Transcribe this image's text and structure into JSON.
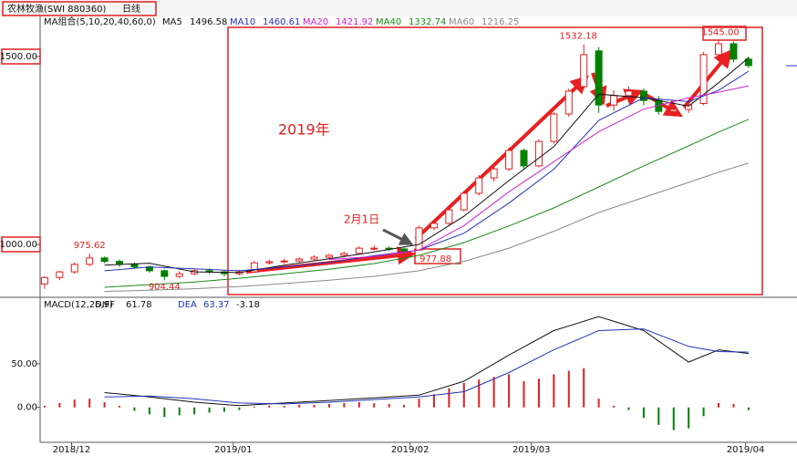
{
  "header": {
    "security": "农林牧渔(SWI 880360)",
    "period": "日线"
  },
  "chart_data": [
    {
      "type": "candlestick",
      "legend_title": "MA组合(5,10,20,40,60,0)",
      "xlim": [
        -0.3,
        47.8
      ],
      "ylim": [
        869,
        1597
      ],
      "yticks": [
        {
          "value": 1500,
          "label": "1500.00"
        },
        {
          "value": 1000,
          "label": "1000.00"
        }
      ],
      "up_color": "#e02020",
      "down_color": "#008000",
      "open": [
        895,
        912,
        927,
        947,
        964,
        955,
        947,
        940,
        930,
        915,
        922,
        930,
        927,
        922,
        927,
        951,
        954,
        956,
        961,
        966,
        971,
        976,
        990,
        990,
        988,
        985,
        1044,
        1056,
        1092,
        1136,
        1177,
        1201,
        1250,
        1209,
        1274,
        1347,
        1420,
        1515,
        1371,
        1396,
        1408,
        1383,
        1354,
        1359,
        1375,
        1505,
        1534,
        1493
      ],
      "high": [
        915,
        930,
        952,
        975.62,
        968,
        960,
        952,
        944,
        934,
        928,
        935,
        936,
        932,
        932,
        956,
        960,
        962,
        966,
        971,
        975,
        980,
        995,
        998,
        995,
        992,
        1050,
        1062,
        1098,
        1142,
        1185,
        1210,
        1258,
        1255,
        1280,
        1352,
        1415,
        1532.18,
        1525,
        1410,
        1420,
        1415,
        1395,
        1375,
        1380,
        1512,
        1545,
        1540,
        1500
      ],
      "low": [
        882,
        905,
        922,
        942,
        950,
        940,
        935,
        925,
        904.44,
        910,
        918,
        922,
        915,
        918,
        925,
        946,
        949,
        952,
        957,
        960,
        966,
        972,
        984,
        982,
        977.88,
        983,
        1038,
        1052,
        1088,
        1130,
        1168,
        1195,
        1200,
        1205,
        1268,
        1340,
        1415,
        1350,
        1355,
        1380,
        1370,
        1345,
        1340,
        1350,
        1370,
        1495,
        1485,
        1470
      ],
      "close": [
        912,
        927,
        947,
        964,
        955,
        947,
        940,
        930,
        915,
        922,
        930,
        927,
        922,
        927,
        951,
        954,
        956,
        961,
        966,
        971,
        976,
        990,
        990,
        988,
        983,
        1044,
        1056,
        1092,
        1136,
        1177,
        1201,
        1250,
        1209,
        1274,
        1347,
        1408,
        1505,
        1371,
        1396,
        1408,
        1383,
        1354,
        1359,
        1371,
        1505,
        1534,
        1493,
        1476
      ],
      "high_value_labels": {
        "45": "1545.00"
      },
      "lines_x": [
        4,
        7,
        10,
        13,
        16,
        19,
        22,
        25,
        28,
        31,
        34,
        37,
        40,
        43,
        45,
        47
      ],
      "series": [
        {
          "name": "MA5",
          "color": "#111111",
          "values": [
            945,
            950,
            927,
            925,
            945,
            962,
            980,
            1000,
            1075,
            1170,
            1260,
            1400,
            1390,
            1368,
            1430,
            1496.58
          ]
        },
        {
          "name": "MA10",
          "color": "#2233bb",
          "values": [
            930,
            940,
            935,
            930,
            940,
            952,
            970,
            985,
            1030,
            1110,
            1200,
            1330,
            1390,
            1380,
            1410,
            1460.61
          ]
        },
        {
          "name": "MA20",
          "color": "#d020d0",
          "values": [
            null,
            null,
            null,
            null,
            null,
            960,
            968,
            985,
            1050,
            1140,
            1220,
            1300,
            1360,
            1390,
            1405,
            1421.92
          ]
        },
        {
          "name": "MA40",
          "color": "#1a8a1a",
          "values": [
            886,
            893,
            900,
            910,
            922,
            934,
            949,
            971,
            1005,
            1049,
            1097,
            1153,
            1209,
            1262,
            1299,
            1332.74
          ]
        },
        {
          "name": "MA60",
          "color": "#8a8a8a",
          "values": [
            875,
            878,
            882,
            888,
            896,
            905,
            915,
            930,
            955,
            990,
            1035,
            1085,
            1125,
            1165,
            1192,
            1216.25
          ]
        }
      ],
      "annotations": [
        "2019年",
        "2月1日"
      ]
    },
    {
      "type": "macd",
      "title": "MACD(12,26,9)",
      "xlim": [
        -0.3,
        47.8
      ],
      "ylim": [
        -40,
        122
      ],
      "yticks": [
        {
          "value": 50,
          "label": "50.00"
        },
        {
          "value": 0,
          "label": "0.00"
        }
      ],
      "xticks": [
        {
          "value": 1.8,
          "label": "2018/12"
        },
        {
          "value": 12.6,
          "label": "2019/01"
        },
        {
          "value": 24.4,
          "label": "2019/02"
        },
        {
          "value": 32.5,
          "label": "2019/03"
        },
        {
          "value": 46.8,
          "label": "2019/04"
        }
      ],
      "histogram": {
        "up_color": "#e02020",
        "down_color": "#008000",
        "values": [
          2,
          5,
          9,
          10,
          6,
          2,
          -4,
          -8,
          -11,
          -9,
          -8,
          -6,
          -5,
          -3,
          1,
          2,
          2,
          3,
          3,
          4,
          5,
          6,
          5,
          4,
          3,
          10,
          15,
          22,
          28,
          32,
          35,
          38,
          30,
          33,
          38,
          42,
          45,
          10,
          2,
          -3,
          -12,
          -20,
          -26,
          -24,
          -10,
          5,
          4,
          -3.18
        ]
      },
      "lines_x": [
        4,
        7,
        10,
        13,
        16,
        19,
        22,
        25,
        28,
        31,
        34,
        37,
        40,
        43,
        45,
        47
      ],
      "series": [
        {
          "name": "DIFF",
          "color": "#111111",
          "values": [
            17,
            12,
            6,
            2,
            5,
            8,
            11,
            14,
            30,
            60,
            88,
            104,
            88,
            52,
            66,
            61.78
          ]
        },
        {
          "name": "DEA",
          "color": "#2233bb",
          "values": [
            12,
            13,
            10,
            5,
            4,
            6,
            9,
            12,
            18,
            40,
            66,
            88,
            90,
            70,
            64,
            63.37
          ]
        }
      ]
    }
  ]
}
